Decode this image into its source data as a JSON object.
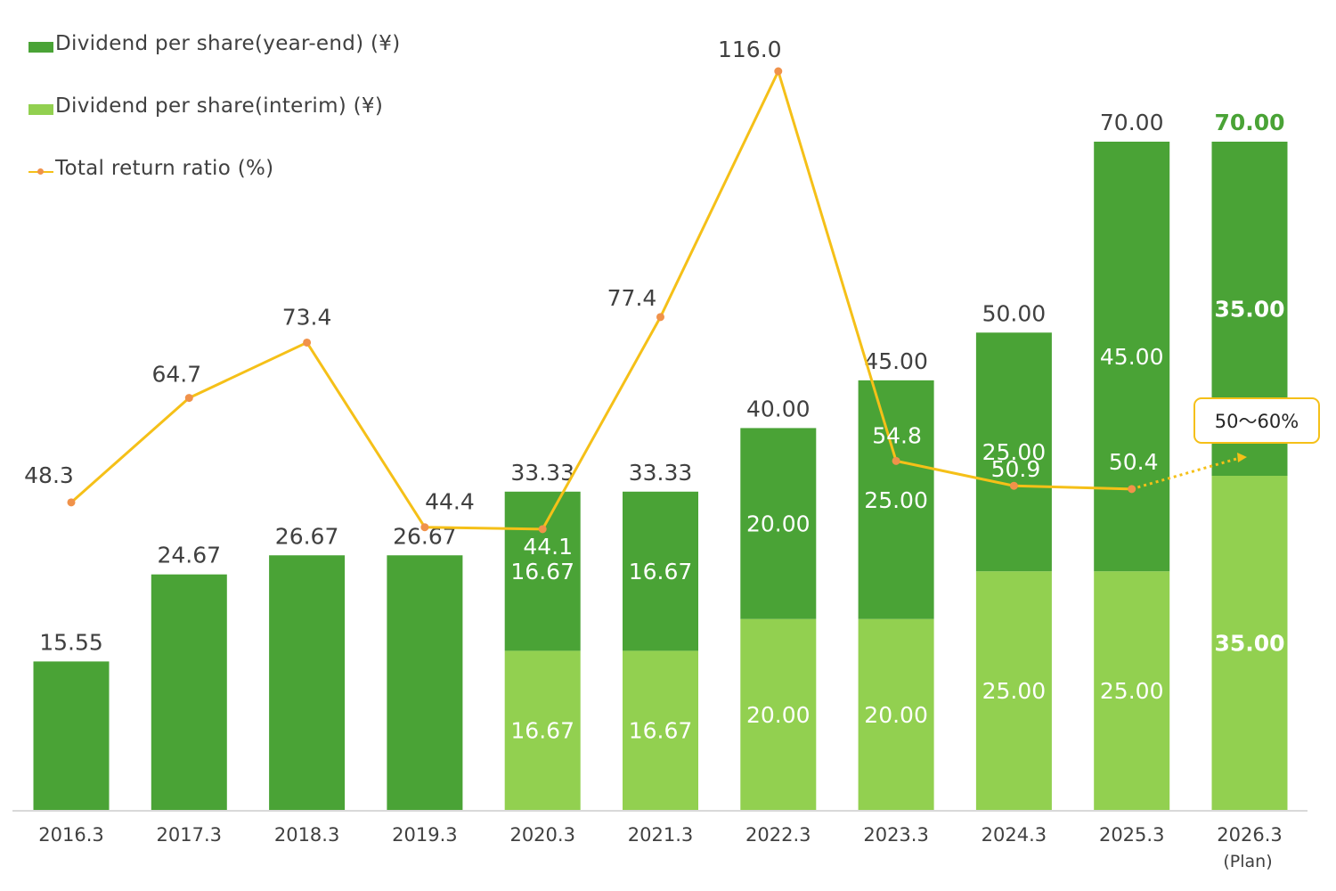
{
  "colors": {
    "year_end": "#4aa336",
    "interim": "#92d050",
    "line": "#f5c018",
    "marker": "#f0924a",
    "axis": "#d9d9d9",
    "text": "#404040",
    "plan_total": "#4aa336"
  },
  "legend": {
    "year_end": "Dividend per share(year-end) (¥)",
    "interim": "Dividend per share(interim) (¥)",
    "ratio": "Total return ratio (%)"
  },
  "callout": "50～60%",
  "plan_note": "(Plan)",
  "chart_data": {
    "type": "bar",
    "categories": [
      "2016.3",
      "2017.3",
      "2018.3",
      "2019.3",
      "2020.3",
      "2021.3",
      "2022.3",
      "2023.3",
      "2024.3",
      "2025.3",
      "2026.3"
    ],
    "series": [
      {
        "name": "Dividend per share(interim) (¥)",
        "values": [
          null,
          null,
          null,
          null,
          16.67,
          16.67,
          20.0,
          20.0,
          25.0,
          25.0,
          35.0
        ],
        "labels": [
          "",
          "",
          "",
          "",
          "16.67",
          "16.67",
          "20.00",
          "20.00",
          "25.00",
          "25.00",
          "35.00"
        ]
      },
      {
        "name": "Dividend per share(year-end) (¥)",
        "values": [
          15.55,
          24.67,
          26.67,
          26.67,
          16.67,
          16.67,
          20.0,
          25.0,
          25.0,
          45.0,
          35.0
        ],
        "labels": [
          "",
          "",
          "",
          "",
          "16.67",
          "16.67",
          "20.00",
          "25.00",
          "25.00",
          "45.00",
          "35.00"
        ]
      },
      {
        "name": "Total return ratio (%)",
        "type": "line",
        "values": [
          48.3,
          64.7,
          73.4,
          44.4,
          44.1,
          77.4,
          116.0,
          54.8,
          50.9,
          50.4,
          null
        ],
        "labels": [
          "48.3",
          "64.7",
          "73.4",
          "44.4",
          "44.1",
          "77.4",
          "116.0",
          "54.8",
          "50.9",
          "50.4",
          ""
        ]
      }
    ],
    "totals": [
      15.55,
      24.67,
      26.67,
      26.67,
      33.33,
      33.33,
      40.0,
      45.0,
      50.0,
      70.0,
      70.0
    ],
    "total_labels": [
      "15.55",
      "24.67",
      "26.67",
      "26.67",
      "33.33",
      "33.33",
      "40.00",
      "45.00",
      "50.00",
      "70.00",
      "70.00"
    ],
    "plan_index": 10,
    "plan_ratio_range": [
      50,
      60
    ],
    "ylim_dividend": [
      0,
      75
    ],
    "ylim_ratio": [
      0,
      121
    ]
  }
}
